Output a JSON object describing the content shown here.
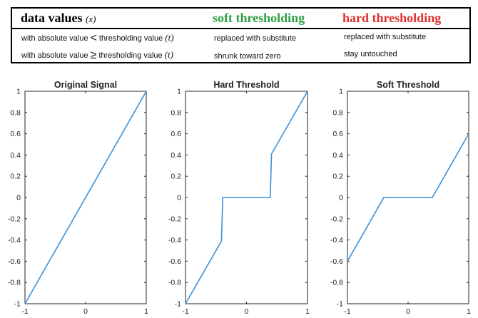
{
  "table": {
    "header": {
      "label": "data values",
      "var": "(x)",
      "soft": "soft thresholding",
      "hard": "hard thresholding",
      "soft_color": "#2ea043",
      "hard_color": "#e03030"
    },
    "rows": [
      {
        "prefix": "with absolute value",
        "op": "<",
        "suffix": "thresholding value",
        "var": "(t)",
        "soft": "replaced with substitute",
        "hard": "replaced with substitute"
      },
      {
        "prefix": "with absolute value",
        "op": "≥",
        "suffix": "thresholding value",
        "var": "(t)",
        "soft": "shrunk toward zero",
        "hard": "stay untouched"
      }
    ]
  },
  "chart_data": [
    {
      "type": "line",
      "title": "Original Signal",
      "xlim": [
        -1,
        1
      ],
      "ylim": [
        -1,
        1
      ],
      "xticks": [
        "-1",
        "0",
        "1"
      ],
      "yticks": [
        "1",
        "0.8",
        "0.6",
        "0.4",
        "0.2",
        "0",
        "-0.2",
        "-0.4",
        "-0.6",
        "-0.8",
        "-1"
      ],
      "line_color": "#3f8fd2",
      "series": [
        {
          "x": [
            -1,
            1
          ],
          "y": [
            -1,
            1
          ]
        }
      ]
    },
    {
      "type": "line",
      "title": "Hard Threshold",
      "xlim": [
        -1,
        1
      ],
      "ylim": [
        -1,
        1
      ],
      "xticks": [
        "-1",
        "0",
        "1"
      ],
      "yticks": [
        "1",
        "0.8",
        "0.6",
        "0.4",
        "0.2",
        "0",
        "-0.2",
        "-0.4",
        "-0.6",
        "-0.8",
        "-1"
      ],
      "line_color": "#3f8fd2",
      "series": [
        {
          "x": [
            -1,
            -0.41,
            -0.39,
            0.39,
            0.41,
            1
          ],
          "y": [
            -1,
            -0.41,
            0,
            0,
            0.41,
            1
          ]
        }
      ]
    },
    {
      "type": "line",
      "title": "Soft Threshold",
      "xlim": [
        -1,
        1
      ],
      "ylim": [
        -1,
        1
      ],
      "xticks": [
        "-1",
        "0",
        "1"
      ],
      "yticks": [
        "1",
        "0.8",
        "0.6",
        "0.4",
        "0.2",
        "0",
        "-0.2",
        "-0.4",
        "-0.6",
        "-0.8",
        "-1"
      ],
      "line_color": "#3f8fd2",
      "series": [
        {
          "x": [
            -1,
            -0.4,
            0.4,
            1
          ],
          "y": [
            -0.6,
            0,
            0,
            0.6
          ]
        }
      ]
    }
  ]
}
